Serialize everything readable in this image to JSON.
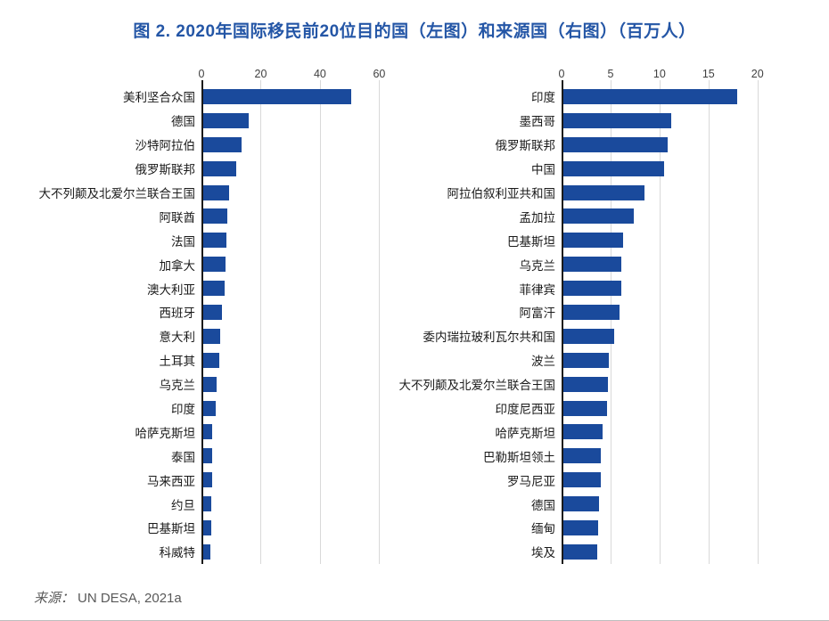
{
  "title": {
    "text": "图 2. 2020年国际移民前20位目的国（左图）和来源国（右图）（百万人）"
  },
  "source": {
    "label": "来源：",
    "text": "UN DESA, 2021a"
  },
  "colors": {
    "bar": "#1A4A9C",
    "title": "#2456A6",
    "gridline": "#D9D9D9",
    "axis": "#1A1A1A",
    "tick_text": "#404040",
    "label_text": "#1A1A1A",
    "source_text": "#595959"
  },
  "chart_data": [
    {
      "type": "bar",
      "orientation": "horizontal",
      "title": "2020年国际移民前20位目的国（左图）",
      "unit": "百万人",
      "categories": [
        "美利坚合众国",
        "德国",
        "沙特阿拉伯",
        "俄罗斯联邦",
        "大不列颠及北爱尔兰联合王国",
        "阿联酋",
        "法国",
        "加拿大",
        "澳大利亚",
        "西班牙",
        "意大利",
        "土耳其",
        "乌克兰",
        "印度",
        "哈萨克斯坦",
        "泰国",
        "马来西亚",
        "约旦",
        "巴基斯坦",
        "科威特"
      ],
      "values": [
        50.6,
        15.8,
        13.5,
        11.6,
        9.4,
        8.7,
        8.5,
        8.0,
        7.7,
        6.8,
        6.4,
        6.0,
        5.0,
        4.9,
        3.7,
        3.6,
        3.5,
        3.4,
        3.3,
        3.1
      ],
      "ticks": [
        0,
        20,
        40,
        60
      ],
      "xlim": [
        0,
        66.5
      ],
      "grid": true,
      "legend": false
    },
    {
      "type": "bar",
      "orientation": "horizontal",
      "title": "2020年国际移民前20位来源国（右图）",
      "unit": "百万人",
      "categories": [
        "印度",
        "墨西哥",
        "俄罗斯联邦",
        "中国",
        "阿拉伯叙利亚共和国",
        "孟加拉",
        "巴基斯坦",
        "乌克兰",
        "菲律宾",
        "阿富汗",
        "委内瑞拉玻利瓦尔共和国",
        "波兰",
        "大不列颠及北爱尔兰联合王国",
        "印度尼西亚",
        "哈萨克斯坦",
        "巴勒斯坦领土",
        "罗马尼亚",
        "德国",
        "缅甸",
        "埃及"
      ],
      "values": [
        17.9,
        11.2,
        10.8,
        10.5,
        8.5,
        7.4,
        6.3,
        6.1,
        6.1,
        5.9,
        5.4,
        4.8,
        4.7,
        4.6,
        4.2,
        4.0,
        4.0,
        3.8,
        3.7,
        3.6
      ],
      "ticks": [
        0,
        5,
        10,
        15,
        20
      ],
      "xlim": [
        0,
        21.3
      ],
      "grid": true,
      "legend": false
    }
  ]
}
